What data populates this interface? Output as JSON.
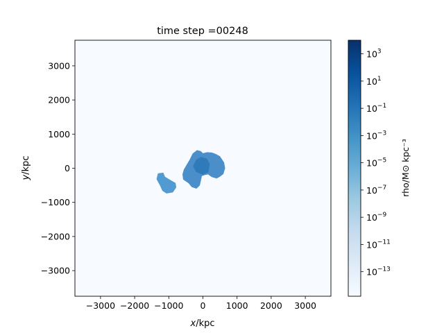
{
  "chart_data": {
    "type": "heatmap",
    "title": "time step =00248",
    "xlabel_var": "x",
    "xlabel_unit": "/kpc",
    "ylabel_var": "y",
    "ylabel_unit": "/kpc",
    "xlim": [
      -3750,
      3750
    ],
    "ylim": [
      -3750,
      3750
    ],
    "x_ticks": [
      -3000,
      -2000,
      -1000,
      0,
      1000,
      2000,
      3000
    ],
    "x_tick_labels": [
      "−3000",
      "−2000",
      "−1000",
      "0",
      "1000",
      "2000",
      "3000"
    ],
    "y_ticks": [
      -3000,
      -2000,
      -1000,
      0,
      1000,
      2000,
      3000
    ],
    "y_tick_labels": [
      "−3000",
      "−2000",
      "−1000",
      "0",
      "1000",
      "2000",
      "3000"
    ],
    "colorbar": {
      "label": "rho/M⊙ kpc⁻³",
      "scale": "log",
      "exp_range": [
        -14.8,
        4.0
      ],
      "tick_exponents": [
        3,
        1,
        -1,
        -3,
        -5,
        -7,
        -9,
        -11,
        -13
      ],
      "colormap": "Blues",
      "colors": [
        "#f7fbff",
        "#deebf7",
        "#c6dbef",
        "#9ecae1",
        "#6baed6",
        "#4292c6",
        "#2171b5",
        "#08519c",
        "#08306b"
      ]
    },
    "background_color": "#f7fbff",
    "blobs": [
      {
        "name": "main-cluster",
        "color": "#4a8fc9",
        "points": [
          [
            -480,
            100
          ],
          [
            -390,
            250
          ],
          [
            -300,
            430
          ],
          [
            -170,
            530
          ],
          [
            -60,
            500
          ],
          [
            0,
            440
          ],
          [
            120,
            470
          ],
          [
            260,
            460
          ],
          [
            370,
            420
          ],
          [
            500,
            350
          ],
          [
            620,
            170
          ],
          [
            650,
            0
          ],
          [
            600,
            -170
          ],
          [
            480,
            -260
          ],
          [
            400,
            -300
          ],
          [
            260,
            -260
          ],
          [
            150,
            -180
          ],
          [
            60,
            -200
          ],
          [
            -30,
            -230
          ],
          [
            -90,
            -500
          ],
          [
            -190,
            -600
          ],
          [
            -330,
            -550
          ],
          [
            -420,
            -440
          ],
          [
            -580,
            -330
          ],
          [
            -600,
            -180
          ],
          [
            -560,
            -40
          ]
        ]
      },
      {
        "name": "secondary-cluster",
        "color": "#529bd0",
        "points": [
          [
            -1320,
            -150
          ],
          [
            -1160,
            -130
          ],
          [
            -1110,
            -250
          ],
          [
            -960,
            -340
          ],
          [
            -800,
            -430
          ],
          [
            -780,
            -560
          ],
          [
            -880,
            -710
          ],
          [
            -1070,
            -740
          ],
          [
            -1190,
            -660
          ],
          [
            -1260,
            -500
          ],
          [
            -1360,
            -320
          ]
        ]
      },
      {
        "name": "core-dense",
        "color": "#2f7ab9",
        "points": [
          [
            -200,
            250
          ],
          [
            -60,
            330
          ],
          [
            120,
            280
          ],
          [
            200,
            120
          ],
          [
            160,
            -120
          ],
          [
            -10,
            -190
          ],
          [
            -200,
            -110
          ],
          [
            -290,
            60
          ]
        ]
      }
    ]
  }
}
